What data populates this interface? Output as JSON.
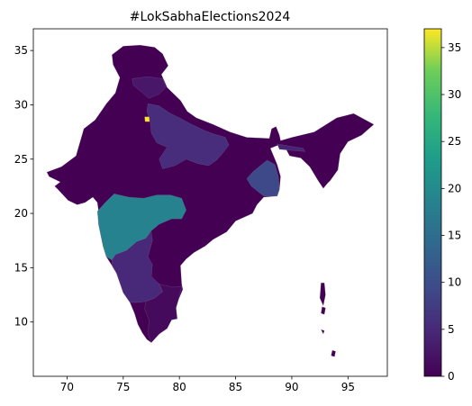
{
  "title": "#LokSabhaElections2024",
  "axes": {
    "x_range": [
      67,
      98.5
    ],
    "y_range": [
      5,
      37
    ],
    "x_ticks": [
      70,
      75,
      80,
      85,
      90,
      95
    ],
    "y_ticks": [
      10,
      15,
      20,
      25,
      30,
      35
    ]
  },
  "colorbar": {
    "range": [
      0,
      37
    ],
    "ticks": [
      0,
      5,
      10,
      15,
      20,
      25,
      30,
      35
    ],
    "colormap": "viridis"
  },
  "regions": [
    {
      "name": "base",
      "value": 0,
      "color": "#440154",
      "points": [
        [
          68.2,
          23.8
        ],
        [
          69.5,
          24.3
        ],
        [
          70.8,
          25.3
        ],
        [
          71.5,
          27.8
        ],
        [
          72.5,
          28.6
        ],
        [
          73.5,
          30.1
        ],
        [
          74.3,
          31.1
        ],
        [
          74.7,
          32.5
        ],
        [
          74.1,
          33.7
        ],
        [
          74.0,
          34.6
        ],
        [
          75.0,
          35.4
        ],
        [
          76.5,
          35.5
        ],
        [
          77.8,
          35.3
        ],
        [
          78.5,
          34.7
        ],
        [
          79.0,
          33.6
        ],
        [
          78.4,
          32.8
        ],
        [
          78.9,
          31.6
        ],
        [
          80.1,
          30.4
        ],
        [
          80.7,
          29.4
        ],
        [
          81.5,
          28.8
        ],
        [
          83.0,
          28.2
        ],
        [
          84.5,
          27.5
        ],
        [
          86.0,
          27.0
        ],
        [
          88.0,
          26.9
        ],
        [
          88.2,
          27.8
        ],
        [
          88.6,
          28.0
        ],
        [
          88.9,
          27.2
        ],
        [
          89.0,
          26.7
        ],
        [
          90.0,
          27.0
        ],
        [
          92.0,
          27.5
        ],
        [
          94.0,
          28.8
        ],
        [
          95.5,
          29.2
        ],
        [
          97.3,
          28.2
        ],
        [
          96.2,
          27.2
        ],
        [
          95.0,
          26.6
        ],
        [
          94.3,
          25.5
        ],
        [
          94.1,
          24.0
        ],
        [
          93.4,
          23.0
        ],
        [
          93.2,
          22.8
        ],
        [
          92.8,
          22.3
        ],
        [
          92.3,
          23.1
        ],
        [
          91.6,
          24.3
        ],
        [
          90.8,
          25.1
        ],
        [
          89.8,
          25.3
        ],
        [
          89.5,
          25.9
        ],
        [
          88.8,
          26.3
        ],
        [
          88.1,
          26.0
        ],
        [
          88.7,
          24.5
        ],
        [
          89.0,
          23.4
        ],
        [
          88.9,
          22.2
        ],
        [
          88.7,
          21.6
        ],
        [
          87.5,
          21.5
        ],
        [
          86.9,
          20.8
        ],
        [
          86.5,
          20.0
        ],
        [
          85.0,
          19.3
        ],
        [
          84.2,
          18.3
        ],
        [
          83.0,
          17.6
        ],
        [
          82.3,
          17.0
        ],
        [
          81.3,
          16.4
        ],
        [
          80.6,
          15.8
        ],
        [
          80.1,
          15.2
        ],
        [
          80.2,
          13.5
        ],
        [
          80.3,
          13.0
        ],
        [
          79.9,
          12.0
        ],
        [
          79.7,
          11.3
        ],
        [
          79.8,
          10.3
        ],
        [
          79.3,
          10.2
        ],
        [
          78.9,
          9.4
        ],
        [
          78.2,
          8.9
        ],
        [
          77.5,
          8.1
        ],
        [
          77.1,
          8.4
        ],
        [
          76.7,
          9.0
        ],
        [
          76.3,
          9.8
        ],
        [
          76.0,
          10.8
        ],
        [
          75.6,
          11.8
        ],
        [
          75.0,
          12.7
        ],
        [
          74.7,
          13.6
        ],
        [
          74.4,
          14.5
        ],
        [
          74.0,
          15.2
        ],
        [
          73.5,
          16.0
        ],
        [
          73.2,
          17.0
        ],
        [
          73.0,
          18.0
        ],
        [
          72.8,
          19.0
        ],
        [
          72.8,
          20.2
        ],
        [
          72.7,
          21.0
        ],
        [
          72.3,
          21.5
        ],
        [
          71.6,
          21.0
        ],
        [
          70.9,
          20.8
        ],
        [
          70.1,
          21.2
        ],
        [
          69.2,
          22.2
        ],
        [
          68.9,
          22.5
        ],
        [
          69.4,
          22.9
        ],
        [
          68.4,
          23.4
        ]
      ]
    },
    {
      "name": "maharashtra",
      "value": 15,
      "color": "#26828e",
      "points": [
        [
          72.7,
          20.2
        ],
        [
          73.4,
          21.0
        ],
        [
          74.2,
          21.8
        ],
        [
          75.5,
          21.5
        ],
        [
          76.8,
          21.4
        ],
        [
          78.0,
          21.7
        ],
        [
          79.2,
          21.7
        ],
        [
          80.2,
          21.4
        ],
        [
          80.6,
          20.3
        ],
        [
          80.2,
          19.5
        ],
        [
          79.3,
          19.5
        ],
        [
          78.2,
          19.0
        ],
        [
          77.5,
          18.4
        ],
        [
          77.0,
          17.7
        ],
        [
          76.0,
          17.0
        ],
        [
          75.3,
          16.6
        ],
        [
          74.3,
          16.2
        ],
        [
          74.0,
          15.7
        ],
        [
          73.5,
          16.0
        ],
        [
          73.2,
          17.0
        ],
        [
          73.0,
          18.0
        ],
        [
          72.8,
          19.0
        ]
      ]
    },
    {
      "name": "uttar-pradesh",
      "value": 5,
      "color": "#472d7b",
      "points": [
        [
          77.2,
          30.1
        ],
        [
          78.2,
          29.9
        ],
        [
          79.2,
          29.2
        ],
        [
          80.0,
          28.8
        ],
        [
          81.1,
          28.2
        ],
        [
          82.3,
          27.6
        ],
        [
          83.1,
          27.3
        ],
        [
          84.1,
          27.0
        ],
        [
          84.4,
          26.3
        ],
        [
          83.9,
          25.6
        ],
        [
          83.3,
          24.9
        ],
        [
          82.6,
          24.4
        ],
        [
          81.6,
          24.6
        ],
        [
          80.6,
          25.0
        ],
        [
          79.6,
          24.4
        ],
        [
          78.5,
          24.1
        ],
        [
          78.2,
          25.0
        ],
        [
          78.9,
          26.1
        ],
        [
          78.0,
          26.5
        ],
        [
          77.5,
          27.4
        ],
        [
          77.4,
          28.5
        ],
        [
          77.1,
          29.4
        ]
      ]
    },
    {
      "name": "west-bengal",
      "value": 9,
      "color": "#3e4989",
      "points": [
        [
          87.8,
          24.9
        ],
        [
          88.5,
          24.5
        ],
        [
          88.8,
          23.4
        ],
        [
          88.9,
          22.2
        ],
        [
          88.7,
          21.6
        ],
        [
          88.0,
          21.6
        ],
        [
          87.5,
          21.6
        ],
        [
          87.0,
          22.0
        ],
        [
          86.4,
          22.5
        ],
        [
          86.0,
          23.2
        ],
        [
          86.5,
          23.8
        ],
        [
          87.2,
          24.4
        ]
      ]
    },
    {
      "name": "karnataka",
      "value": 5,
      "color": "#482878",
      "points": [
        [
          74.3,
          16.2
        ],
        [
          75.3,
          16.6
        ],
        [
          76.2,
          17.4
        ],
        [
          77.0,
          17.7
        ],
        [
          77.5,
          18.3
        ],
        [
          77.6,
          17.5
        ],
        [
          77.4,
          16.8
        ],
        [
          77.2,
          16.0
        ],
        [
          77.6,
          15.3
        ],
        [
          77.5,
          14.2
        ],
        [
          78.2,
          13.5
        ],
        [
          78.5,
          12.8
        ],
        [
          77.8,
          12.2
        ],
        [
          77.0,
          11.9
        ],
        [
          76.4,
          11.8
        ],
        [
          75.6,
          11.8
        ],
        [
          75.0,
          12.7
        ],
        [
          74.7,
          13.6
        ],
        [
          74.4,
          14.5
        ],
        [
          74.0,
          15.2
        ],
        [
          74.0,
          15.7
        ]
      ]
    },
    {
      "name": "north-east-strip",
      "value": 1,
      "color": "#482475",
      "points": [
        [
          88.7,
          26.4
        ],
        [
          89.8,
          26.2
        ],
        [
          91.0,
          26.0
        ],
        [
          91.2,
          25.7
        ],
        [
          90.0,
          25.8
        ],
        [
          88.9,
          25.9
        ]
      ]
    },
    {
      "name": "himachal",
      "value": 2,
      "color": "#481769",
      "points": [
        [
          75.8,
          32.4
        ],
        [
          77.2,
          32.6
        ],
        [
          78.5,
          32.4
        ],
        [
          78.8,
          31.6
        ],
        [
          78.2,
          31.0
        ],
        [
          77.3,
          30.6
        ],
        [
          76.6,
          31.2
        ],
        [
          75.9,
          31.8
        ]
      ]
    },
    {
      "name": "tamil-nadu",
      "value": 1,
      "color": "#460a5d",
      "points": [
        [
          78.2,
          13.5
        ],
        [
          79.4,
          13.2
        ],
        [
          80.2,
          13.3
        ],
        [
          79.9,
          12.0
        ],
        [
          79.7,
          11.3
        ],
        [
          79.8,
          10.3
        ],
        [
          79.3,
          10.2
        ],
        [
          78.9,
          9.4
        ],
        [
          78.2,
          8.9
        ],
        [
          77.5,
          8.1
        ],
        [
          77.2,
          8.9
        ],
        [
          77.3,
          10.2
        ],
        [
          76.9,
          11.2
        ],
        [
          77.0,
          11.9
        ],
        [
          77.8,
          12.2
        ],
        [
          78.5,
          12.8
        ]
      ]
    },
    {
      "name": "andaman-island-1",
      "value": 0,
      "color": "#440154",
      "points": [
        [
          92.6,
          13.6
        ],
        [
          92.9,
          13.6
        ],
        [
          93.0,
          12.5
        ],
        [
          92.8,
          11.5
        ],
        [
          92.5,
          12.2
        ]
      ]
    },
    {
      "name": "andaman-island-2",
      "value": 0,
      "color": "#440154",
      "points": [
        [
          92.7,
          11.4
        ],
        [
          93.0,
          11.3
        ],
        [
          92.9,
          10.7
        ],
        [
          92.6,
          10.8
        ]
      ]
    },
    {
      "name": "nicobar-island-1",
      "value": 0,
      "color": "#440154",
      "points": [
        [
          92.6,
          9.3
        ],
        [
          92.9,
          9.2
        ],
        [
          92.8,
          8.9
        ]
      ]
    },
    {
      "name": "nicobar-island-2",
      "value": 0,
      "color": "#440154",
      "points": [
        [
          93.6,
          7.4
        ],
        [
          93.9,
          7.3
        ],
        [
          93.8,
          6.8
        ],
        [
          93.5,
          6.9
        ]
      ]
    },
    {
      "name": "delhi",
      "value": 37,
      "color": "#fde725",
      "points": [
        [
          76.9,
          28.9
        ],
        [
          77.3,
          28.9
        ],
        [
          77.35,
          28.45
        ],
        [
          76.95,
          28.45
        ]
      ]
    }
  ]
}
